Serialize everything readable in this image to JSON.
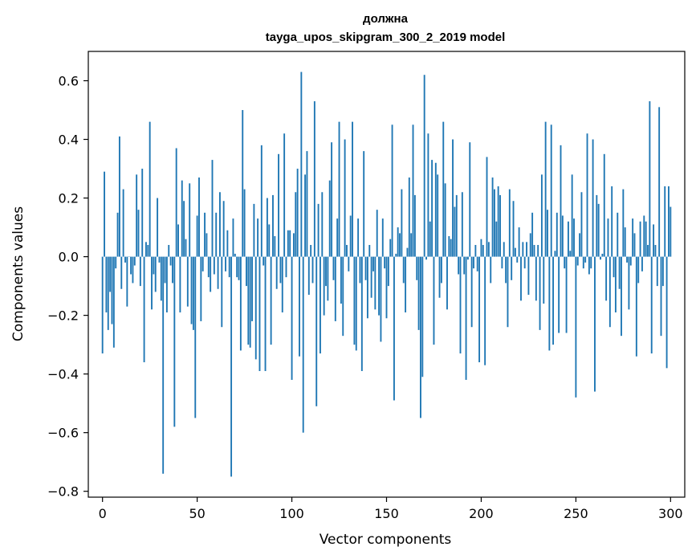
{
  "chart_data": {
    "type": "bar",
    "title": "должна",
    "subtitle": "tayga_upos_skipgram_300_2_2019 model",
    "xlabel": "Vector components",
    "ylabel": "Components values",
    "xlim": [
      -7.5,
      307.5
    ],
    "ylim": [
      -0.82,
      0.7
    ],
    "xticks": [
      0,
      50,
      100,
      150,
      200,
      250,
      300
    ],
    "xtick_labels": [
      "0",
      "50",
      "100",
      "150",
      "200",
      "250",
      "300"
    ],
    "yticks": [
      -0.8,
      -0.6,
      -0.4,
      -0.2,
      0.0,
      0.2,
      0.4,
      0.6
    ],
    "ytick_labels": [
      "−0.8",
      "−0.6",
      "−0.4",
      "−0.2",
      "0.0",
      "0.2",
      "0.4",
      "0.6"
    ],
    "grid": false,
    "bar_color": "#1f77b4",
    "x_start": 0,
    "values": [
      -0.33,
      0.29,
      -0.19,
      -0.25,
      -0.12,
      -0.23,
      -0.31,
      -0.04,
      0.15,
      0.41,
      -0.11,
      0.23,
      -0.02,
      -0.17,
      0.0,
      -0.06,
      -0.09,
      -0.03,
      0.28,
      0.16,
      -0.1,
      0.3,
      -0.36,
      0.05,
      0.04,
      0.46,
      -0.18,
      -0.06,
      -0.12,
      0.2,
      -0.02,
      -0.15,
      -0.74,
      -0.09,
      -0.19,
      0.04,
      -0.03,
      -0.09,
      -0.58,
      0.37,
      0.11,
      -0.19,
      0.26,
      0.19,
      0.06,
      -0.17,
      0.25,
      -0.23,
      -0.25,
      -0.55,
      0.14,
      0.27,
      -0.22,
      -0.05,
      0.15,
      0.08,
      -0.07,
      -0.12,
      0.33,
      -0.06,
      0.15,
      -0.11,
      0.22,
      -0.24,
      0.19,
      -0.05,
      0.09,
      -0.07,
      -0.75,
      0.13,
      0.01,
      -0.07,
      -0.08,
      -0.32,
      0.5,
      0.23,
      -0.1,
      -0.3,
      -0.31,
      -0.22,
      0.18,
      -0.35,
      0.13,
      -0.39,
      0.38,
      -0.03,
      -0.39,
      0.2,
      0.11,
      -0.3,
      0.21,
      0.07,
      -0.11,
      0.35,
      -0.09,
      -0.19,
      0.42,
      -0.07,
      0.09,
      0.09,
      -0.42,
      0.08,
      0.22,
      0.3,
      -0.34,
      0.63,
      -0.6,
      0.28,
      0.36,
      -0.13,
      0.04,
      -0.09,
      0.53,
      -0.51,
      0.18,
      -0.33,
      0.22,
      -0.2,
      -0.1,
      -0.15,
      0.26,
      0.39,
      -0.08,
      -0.22,
      0.13,
      0.46,
      -0.16,
      -0.27,
      0.4,
      0.04,
      -0.05,
      0.14,
      0.46,
      -0.3,
      -0.32,
      0.13,
      -0.09,
      -0.39,
      0.36,
      -0.08,
      -0.21,
      0.04,
      -0.14,
      -0.05,
      -0.18,
      0.16,
      -0.2,
      -0.29,
      0.13,
      -0.04,
      -0.21,
      -0.1,
      0.06,
      0.45,
      -0.49,
      0.01,
      0.1,
      0.08,
      0.23,
      -0.09,
      -0.19,
      0.03,
      0.27,
      0.08,
      0.45,
      0.21,
      -0.08,
      -0.25,
      -0.55,
      -0.41,
      0.62,
      -0.01,
      0.42,
      0.12,
      0.33,
      -0.3,
      0.32,
      0.28,
      -0.14,
      -0.09,
      0.46,
      0.25,
      -0.18,
      0.07,
      0.06,
      0.4,
      0.17,
      0.21,
      -0.06,
      -0.33,
      0.22,
      -0.06,
      -0.42,
      -0.01,
      0.39,
      -0.24,
      -0.04,
      0.04,
      -0.05,
      -0.36,
      0.06,
      0.04,
      -0.37,
      0.34,
      0.05,
      -0.09,
      0.27,
      0.23,
      0.12,
      0.24,
      0.21,
      -0.04,
      0.05,
      -0.09,
      -0.24,
      0.23,
      -0.08,
      0.19,
      0.03,
      -0.02,
      0.1,
      -0.15,
      0.05,
      -0.04,
      0.05,
      -0.13,
      0.08,
      0.15,
      0.04,
      -0.15,
      0.04,
      -0.25,
      0.28,
      -0.16,
      0.46,
      0.16,
      -0.32,
      0.45,
      -0.3,
      0.02,
      0.15,
      -0.26,
      0.38,
      0.14,
      -0.04,
      -0.26,
      0.12,
      0.02,
      0.28,
      0.13,
      -0.48,
      -0.03,
      0.08,
      0.22,
      -0.04,
      -0.02,
      0.42,
      -0.06,
      -0.04,
      0.4,
      -0.46,
      0.21,
      0.18,
      -0.01,
      0.01,
      0.35,
      -0.15,
      0.13,
      -0.24,
      0.24,
      -0.07,
      -0.19,
      0.15,
      -0.11,
      -0.27,
      0.23,
      0.1,
      -0.02,
      -0.18,
      -0.03,
      0.13,
      0.08,
      -0.34,
      -0.09,
      0.12,
      -0.05,
      0.14,
      0.12,
      0.04,
      0.53,
      -0.33,
      0.11,
      0.04,
      -0.1,
      0.51,
      -0.27,
      -0.1,
      0.24,
      -0.38,
      0.24,
      0.17
    ]
  }
}
